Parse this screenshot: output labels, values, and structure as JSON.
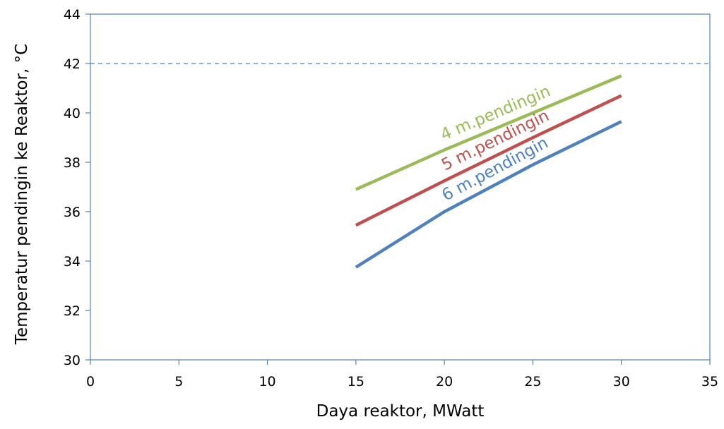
{
  "chart_data": {
    "type": "line",
    "xlabel": "Daya reaktor, MWatt",
    "ylabel": "Temperatur  pendingin ke Reaktor, °C",
    "xlim": [
      0,
      35
    ],
    "ylim": [
      30,
      44
    ],
    "xticks": [
      "0",
      "5",
      "10",
      "15",
      "20",
      "25",
      "30",
      "35"
    ],
    "yticks": [
      "30",
      "32",
      "34",
      "36",
      "38",
      "40",
      "42",
      "44"
    ],
    "grid": false,
    "series": [
      {
        "name": "4 m.pendingin",
        "color": "#9BBB59",
        "x": [
          15,
          20,
          25,
          30
        ],
        "y": [
          36.9,
          38.5,
          40.0,
          41.5
        ]
      },
      {
        "name": "5 m.pendingin",
        "color": "#C0504D",
        "x": [
          15,
          20,
          25,
          30
        ],
        "y": [
          35.45,
          37.25,
          39.0,
          40.7
        ]
      },
      {
        "name": "6 m.pendingin",
        "color": "#4F81BD",
        "x": [
          15,
          20,
          25,
          30
        ],
        "y": [
          33.75,
          36.0,
          37.9,
          39.65
        ]
      }
    ],
    "reference_line": {
      "y": 42,
      "style": "dashed",
      "color": "#4F81BD"
    }
  }
}
